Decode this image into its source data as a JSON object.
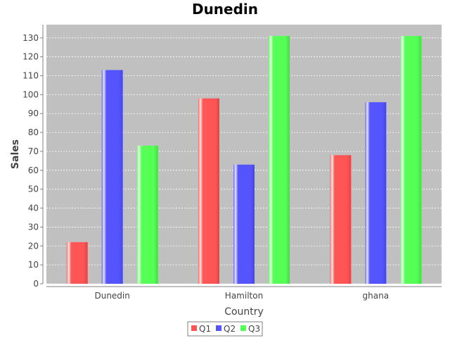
{
  "chart_data": {
    "type": "bar",
    "title": "Dunedin",
    "xlabel": "Country",
    "ylabel": "Sales",
    "categories": [
      "Dunedin",
      "Hamilton",
      "ghana"
    ],
    "series": [
      {
        "name": "Q1",
        "color": "#ff5555",
        "values": [
          22,
          98,
          68
        ]
      },
      {
        "name": "Q2",
        "color": "#5555ff",
        "values": [
          113,
          63,
          96
        ]
      },
      {
        "name": "Q3",
        "color": "#55ff55",
        "values": [
          73,
          131,
          131
        ]
      }
    ],
    "ylim": [
      0,
      137
    ],
    "yticks": [
      0,
      10,
      20,
      30,
      40,
      50,
      60,
      70,
      80,
      90,
      100,
      110,
      120,
      130
    ],
    "grid": true,
    "plot_background": "#c0c0c0",
    "legend_position": "bottom"
  }
}
